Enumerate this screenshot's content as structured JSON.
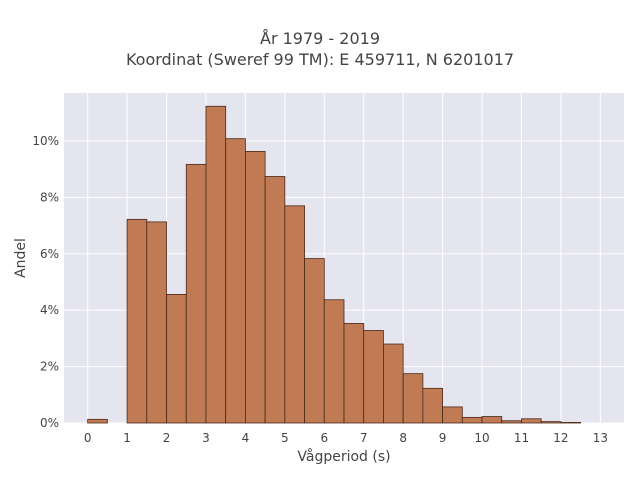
{
  "chart_data": {
    "type": "bar",
    "title": "År 1979 - 2019",
    "subtitle": "Koordinat (Sweref 99 TM): E 459711, N 6201017",
    "xlabel": "Vågperiod (s)",
    "ylabel": "Andel",
    "xlim": [
      -0.6,
      13.6
    ],
    "ylim": [
      0,
      11.7
    ],
    "x_ticks": [
      "0",
      "1",
      "2",
      "3",
      "4",
      "5",
      "6",
      "7",
      "8",
      "9",
      "10",
      "11",
      "12",
      "13"
    ],
    "y_ticks": [
      "0%",
      "2%",
      "4%",
      "6%",
      "8%",
      "10%"
    ],
    "bin_width": 0.5,
    "bins": [
      {
        "x0": 0.0,
        "value": 0.13
      },
      {
        "x0": 1.0,
        "value": 7.22
      },
      {
        "x0": 1.5,
        "value": 7.13
      },
      {
        "x0": 2.0,
        "value": 4.56
      },
      {
        "x0": 2.5,
        "value": 9.17
      },
      {
        "x0": 3.0,
        "value": 11.23
      },
      {
        "x0": 3.5,
        "value": 10.08
      },
      {
        "x0": 4.0,
        "value": 9.63
      },
      {
        "x0": 4.5,
        "value": 8.74
      },
      {
        "x0": 5.0,
        "value": 7.7
      },
      {
        "x0": 5.5,
        "value": 5.83
      },
      {
        "x0": 6.0,
        "value": 4.37
      },
      {
        "x0": 6.5,
        "value": 3.53
      },
      {
        "x0": 7.0,
        "value": 3.28
      },
      {
        "x0": 7.5,
        "value": 2.8
      },
      {
        "x0": 8.0,
        "value": 1.75
      },
      {
        "x0": 8.5,
        "value": 1.23
      },
      {
        "x0": 9.0,
        "value": 0.57
      },
      {
        "x0": 9.5,
        "value": 0.2
      },
      {
        "x0": 10.0,
        "value": 0.23
      },
      {
        "x0": 10.5,
        "value": 0.08
      },
      {
        "x0": 11.0,
        "value": 0.15
      },
      {
        "x0": 11.5,
        "value": 0.05
      },
      {
        "x0": 12.0,
        "value": 0.02
      }
    ],
    "colors": {
      "bar_fill": "#c07a54",
      "bar_stroke": "#4a2a1a",
      "plot_bg": "#e5e5ef",
      "grid": "#ffffff"
    },
    "grid": true
  }
}
